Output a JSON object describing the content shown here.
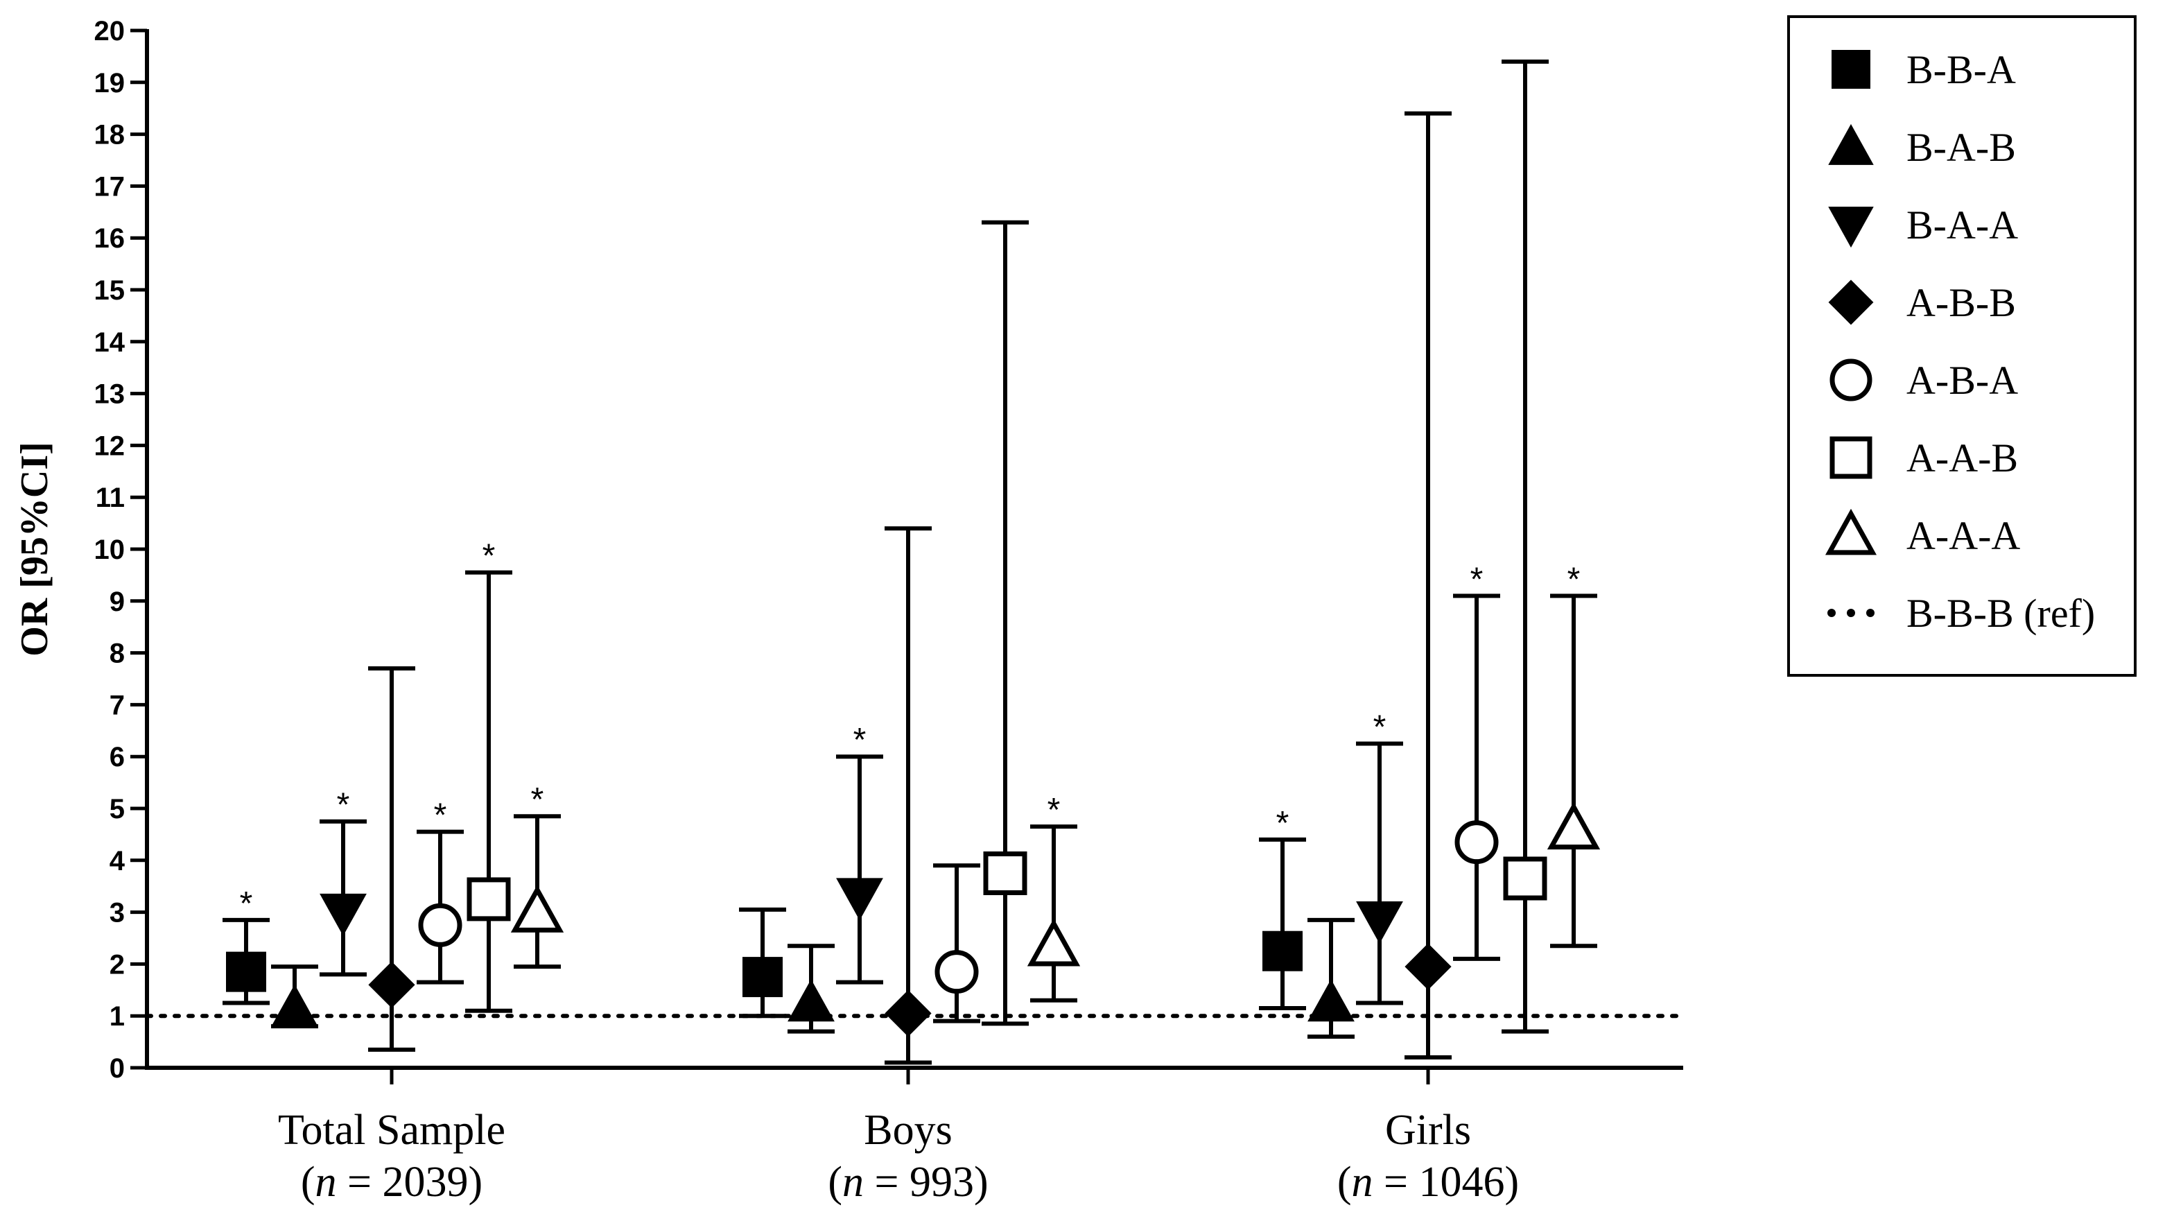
{
  "chart_data": {
    "type": "scatter",
    "ylabel": "OR [95%CI]",
    "xlabel": "",
    "ylim": [
      0,
      20
    ],
    "yticks": [
      "0",
      "1",
      "2",
      "3",
      "4",
      "5",
      "6",
      "7",
      "8",
      "9",
      "10",
      "11",
      "12",
      "13",
      "14",
      "15",
      "16",
      "17",
      "18",
      "19",
      "20"
    ],
    "reference_line": {
      "value": 1,
      "label": "B-B-B (ref)"
    },
    "categories": [
      {
        "name": "Total Sample",
        "n_prefix": "(",
        "n_var": "n",
        "n_text": " = 2039)"
      },
      {
        "name": "Boys",
        "n_prefix": "(",
        "n_var": "n",
        "n_text": " = 993)"
      },
      {
        "name": "Girls",
        "n_prefix": "(",
        "n_var": "n",
        "n_text": " = 1046)"
      }
    ],
    "significance_mark": "*",
    "series": [
      {
        "name": "B-B-A",
        "marker": "square-filled",
        "points": [
          {
            "or": 1.85,
            "low": 1.25,
            "high": 2.85,
            "sig": true
          },
          {
            "or": 1.75,
            "low": 1.0,
            "high": 3.05,
            "sig": false
          },
          {
            "or": 2.25,
            "low": 1.15,
            "high": 4.4,
            "sig": true
          }
        ]
      },
      {
        "name": "B-A-B",
        "marker": "triangle-up-filled",
        "points": [
          {
            "or": 1.15,
            "low": 0.8,
            "high": 1.95,
            "sig": false
          },
          {
            "or": 1.25,
            "low": 0.7,
            "high": 2.35,
            "sig": false
          },
          {
            "or": 1.25,
            "low": 0.6,
            "high": 2.85,
            "sig": false
          }
        ]
      },
      {
        "name": "B-A-A",
        "marker": "triangle-down-filled",
        "points": [
          {
            "or": 3.0,
            "low": 1.8,
            "high": 4.75,
            "sig": true
          },
          {
            "or": 3.3,
            "low": 1.65,
            "high": 6.0,
            "sig": true
          },
          {
            "or": 2.85,
            "low": 1.25,
            "high": 6.25,
            "sig": true
          }
        ]
      },
      {
        "name": "A-B-B",
        "marker": "diamond-filled",
        "points": [
          {
            "or": 1.6,
            "low": 0.35,
            "high": 7.7,
            "sig": false
          },
          {
            "or": 1.05,
            "low": 0.1,
            "high": 10.4,
            "sig": false
          },
          {
            "or": 1.95,
            "low": 0.2,
            "high": 18.4,
            "sig": false
          }
        ]
      },
      {
        "name": "A-B-A",
        "marker": "circle-open",
        "points": [
          {
            "or": 2.75,
            "low": 1.65,
            "high": 4.55,
            "sig": true
          },
          {
            "or": 1.85,
            "low": 0.9,
            "high": 3.9,
            "sig": false
          },
          {
            "or": 4.35,
            "low": 2.1,
            "high": 9.1,
            "sig": true
          }
        ]
      },
      {
        "name": "A-A-B",
        "marker": "square-open",
        "points": [
          {
            "or": 3.25,
            "low": 1.1,
            "high": 9.55,
            "sig": true
          },
          {
            "or": 3.75,
            "low": 0.85,
            "high": 16.3,
            "sig": false
          },
          {
            "or": 3.65,
            "low": 0.7,
            "high": 19.4,
            "sig": false
          }
        ]
      },
      {
        "name": "A-A-A",
        "marker": "triangle-up-open",
        "points": [
          {
            "or": 3.0,
            "low": 1.95,
            "high": 4.85,
            "sig": true
          },
          {
            "or": 2.35,
            "low": 1.3,
            "high": 4.65,
            "sig": true
          },
          {
            "or": 4.6,
            "low": 2.35,
            "high": 9.1,
            "sig": true
          }
        ]
      }
    ],
    "legend": {
      "position": "top-right"
    }
  },
  "colors": {
    "ink": "#000000",
    "background": "#ffffff"
  }
}
